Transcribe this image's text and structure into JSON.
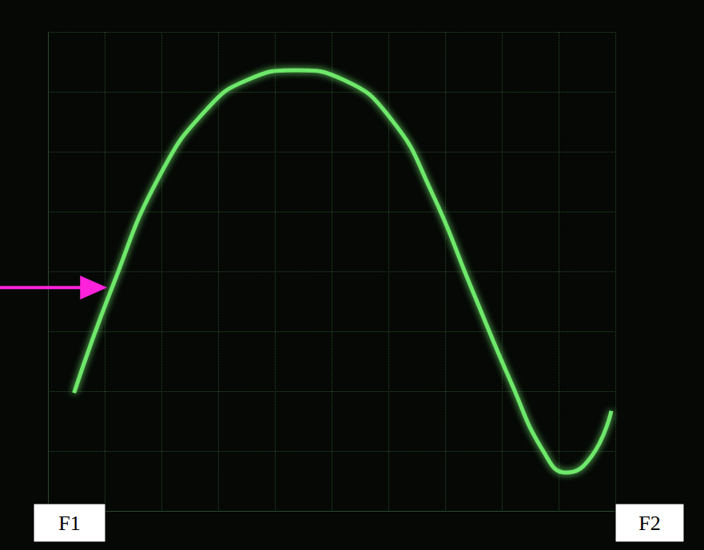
{
  "chart_data": {
    "type": "line",
    "x": [
      0.46,
      1.13,
      1.97,
      2.82,
      3.52,
      4.37,
      5.21,
      6.06,
      6.76,
      7.46,
      8.17,
      8.73,
      9.13,
      9.58,
      9.93
    ],
    "series": [
      {
        "color": "#6ee86a",
        "marker": "none",
        "line_style": "solid",
        "values": [
          1.97,
          3.73,
          5.6,
          6.73,
          7.2,
          7.36,
          7.2,
          6.53,
          5.33,
          3.73,
          2.13,
          1.0,
          0.64,
          0.91,
          1.67
        ]
      }
    ],
    "xlim": [
      0,
      10
    ],
    "xticks": [
      0,
      1,
      2,
      3,
      4,
      5,
      6,
      7,
      8,
      9,
      10
    ],
    "ylim": [
      0,
      8
    ],
    "yticks": [
      0,
      1,
      2,
      3,
      4,
      5,
      6,
      7,
      8
    ],
    "grid": true,
    "tick_labels": false,
    "annotations": [
      "F1",
      "F2"
    ]
  }
}
